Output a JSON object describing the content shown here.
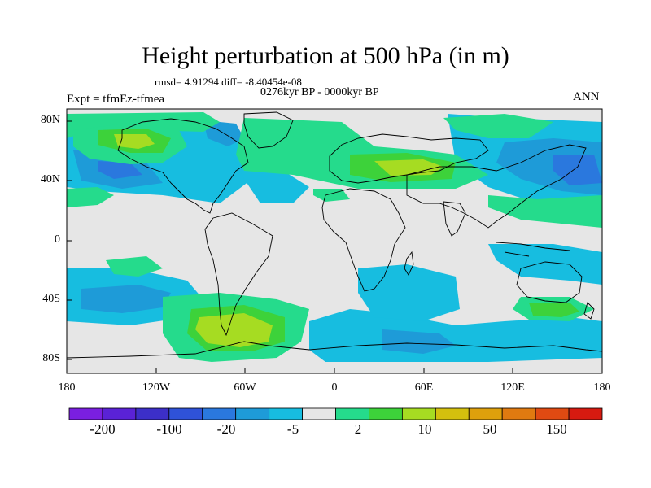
{
  "title": "Height perturbation at 500 hPa (in m)",
  "stats": "rmsd= 4.91294 diff= -8.40454e-08",
  "period": "0276kyr BP - 0000kyr BP",
  "expt": "Expt = tfmEz-tfmea",
  "season": "ANN",
  "lat_labels": [
    "80N",
    "40N",
    "0",
    "40S",
    "80S"
  ],
  "lon_labels": [
    "180",
    "120W",
    "60W",
    "0",
    "60E",
    "120E",
    "180"
  ],
  "colorbar": {
    "colors": [
      "#7a1fe0",
      "#5a22d6",
      "#3c2fc8",
      "#2f52d8",
      "#2a78de",
      "#1e9bd8",
      "#17bde0",
      "#e6e6e6",
      "#25db8c",
      "#3dd23a",
      "#a6dc22",
      "#d4c00e",
      "#dea00c",
      "#e07a10",
      "#e04a12",
      "#d61a10"
    ],
    "labels": [
      "-200",
      "-100",
      "-20",
      "-5",
      "2",
      "10",
      "50",
      "150"
    ]
  },
  "map": {
    "background": "#e6e6e6",
    "coast_color": "#000000"
  }
}
